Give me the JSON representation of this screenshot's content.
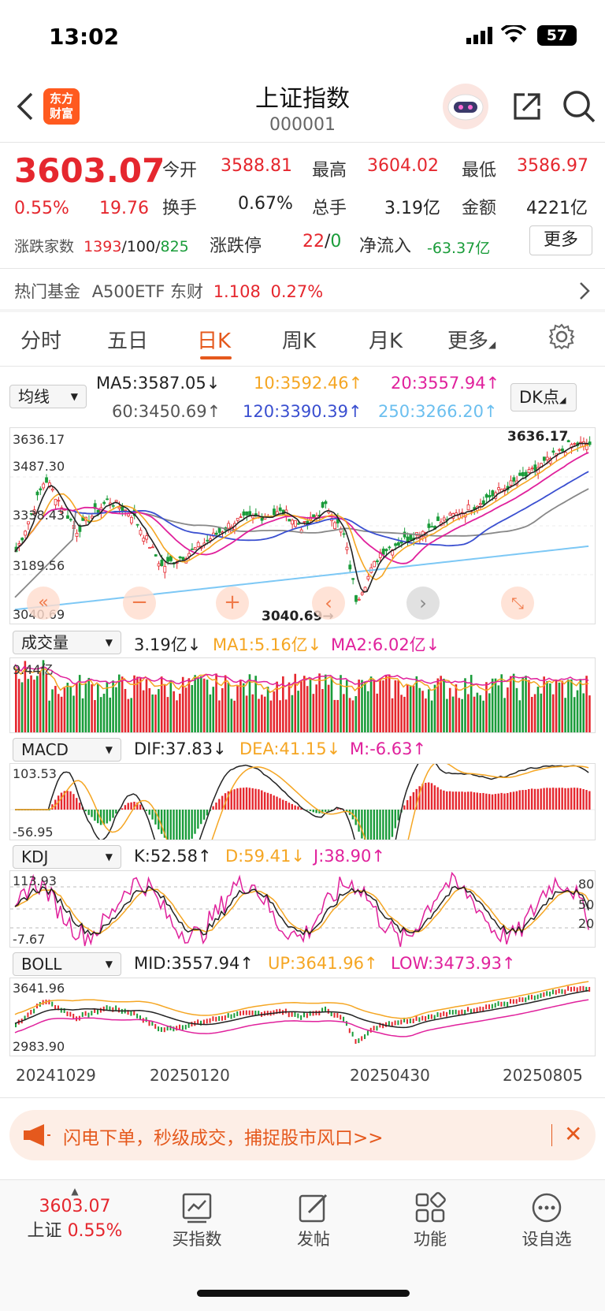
{
  "status": {
    "time": "13:02",
    "battery": "57"
  },
  "header": {
    "logo_line1": "东方",
    "logo_line2": "财富",
    "title": "上证指数",
    "code": "000001"
  },
  "quote": {
    "price": "3603.07",
    "change_pct": "0.55%",
    "change": "19.76",
    "open_label": "今开",
    "open": "3588.81",
    "high_label": "最高",
    "high": "3604.02",
    "low_label": "最低",
    "low": "3586.97",
    "turnover_label": "换手",
    "turnover": "0.67%",
    "volume_label": "总手",
    "volume": "3.19亿",
    "amount_label": "金额",
    "amount": "4221亿",
    "breadth_label": "涨跌家数",
    "up_count": "1393",
    "flat_count": "100",
    "down_count": "825",
    "limit_label": "涨跌停",
    "limit_up": "22",
    "limit_down": "0",
    "inflow_label": "净流入",
    "inflow": "-63.37亿",
    "more_label": "更多"
  },
  "hot_fund": {
    "label": "热门基金",
    "name": "A500ETF 东财",
    "price": "1.108",
    "pct": "0.27%"
  },
  "tabs": [
    "分时",
    "五日",
    "日K",
    "周K",
    "月K",
    "更多"
  ],
  "ma": {
    "select": "均线",
    "ma5": "MA5:3587.05↓",
    "ma10": "10:3592.46↑",
    "ma20": "20:3557.94↑",
    "ma60": "60:3450.69↑",
    "ma120": "120:3390.39↑",
    "ma250": "250:3266.20↑",
    "dk": "DK点"
  },
  "kline": {
    "y_labels": [
      "3636.17",
      "3487.30",
      "3338.43",
      "3189.56",
      "3040.69"
    ],
    "high_marker": "3636.17",
    "low_marker": "3040.69→",
    "colors": {
      "ma5": "#222222",
      "ma10": "#f5a623",
      "ma20": "#e0219c",
      "ma60": "#888888",
      "ma120": "#3a4fd0",
      "ma250": "#7dc8f5",
      "up": "#e5272e",
      "down": "#1a9c3a"
    }
  },
  "volume": {
    "select": "成交量",
    "value": "3.19亿↓",
    "ma1": "MA1:5.16亿↓",
    "ma2": "MA2:6.02亿↓",
    "y_label": "9.44亿"
  },
  "macd": {
    "select": "MACD",
    "dif": "DIF:37.83↓",
    "dea": "DEA:41.15↓",
    "m": "M:-6.63↑",
    "y_top": "103.53",
    "y_bottom": "-56.95"
  },
  "kdj": {
    "select": "KDJ",
    "k": "K:52.58↑",
    "d": "D:59.41↓",
    "j": "J:38.90↑",
    "y_top": "113.93",
    "y_bottom": "-7.67",
    "r80": "80",
    "r50": "50",
    "r20": "20"
  },
  "boll": {
    "select": "BOLL",
    "mid": "MID:3557.94↑",
    "up": "UP:3641.96↑",
    "low": "LOW:3473.93↑",
    "y_top": "3641.96",
    "y_bottom": "2983.90"
  },
  "dates": [
    "20241029",
    "20250120",
    "20250430",
    "20250805"
  ],
  "banner": {
    "text": "闪电下单，秒级成交，捕捉股市风口>>"
  },
  "bottom": {
    "price": "3603.07",
    "name": "上证",
    "pct": "0.55%",
    "nav": [
      "买指数",
      "发帖",
      "功能",
      "设自选"
    ]
  }
}
